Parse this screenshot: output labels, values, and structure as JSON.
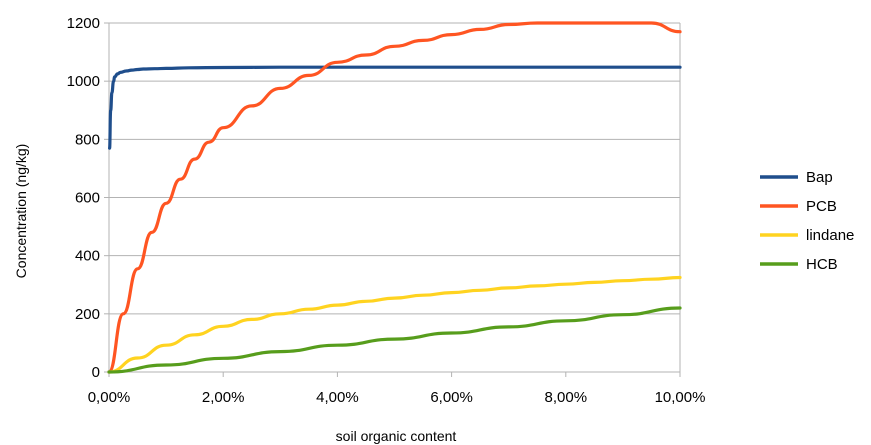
{
  "chart_data": {
    "type": "line",
    "title": "",
    "xlabel": "soil organic content",
    "ylabel": "Concentration (ng/kg)",
    "xlim": [
      0,
      0.1
    ],
    "ylim": [
      0,
      1200
    ],
    "x_tick_values": [
      0,
      0.02,
      0.04,
      0.06,
      0.08,
      0.1
    ],
    "x_tick_labels": [
      "0,00%",
      "2,00%",
      "4,00%",
      "6,00%",
      "8,00%",
      "10,00%"
    ],
    "y_tick_values": [
      0,
      200,
      400,
      600,
      800,
      1000,
      1200
    ],
    "y_tick_labels": [
      "0",
      "200",
      "400",
      "600",
      "800",
      "1000",
      "1200"
    ],
    "grid": "horizontal",
    "legend_position": "right",
    "series": [
      {
        "name": "Bap",
        "color": "#1f4e8c",
        "x": [
          0.0001,
          0.0003,
          0.0005,
          0.0008,
          0.001,
          0.0015,
          0.002,
          0.003,
          0.004,
          0.005,
          0.006,
          0.008,
          0.01,
          0.014,
          0.02,
          0.03,
          0.04,
          0.06,
          0.08,
          0.1
        ],
        "y": [
          770,
          900,
          960,
          1000,
          1015,
          1025,
          1030,
          1035,
          1038,
          1040,
          1042,
          1043,
          1044,
          1046,
          1047,
          1048,
          1048,
          1048,
          1048,
          1048
        ]
      },
      {
        "name": "PCB",
        "color": "#ff5522",
        "x": [
          0,
          0.0025,
          0.005,
          0.0075,
          0.01,
          0.0125,
          0.015,
          0.0175,
          0.02,
          0.025,
          0.03,
          0.035,
          0.04,
          0.045,
          0.05,
          0.055,
          0.06,
          0.065,
          0.07,
          0.075,
          0.08,
          0.085,
          0.09,
          0.095,
          0.1
        ],
        "y": [
          0,
          200,
          355,
          480,
          580,
          663,
          732,
          790,
          840,
          915,
          975,
          1020,
          1065,
          1090,
          1120,
          1140,
          1160,
          1178,
          1195,
          1210,
          1225,
          1238,
          1250,
          1262,
          1170
        ]
      },
      {
        "name": "lindane",
        "color": "#ffd320",
        "x": [
          0,
          0.005,
          0.01,
          0.015,
          0.02,
          0.025,
          0.03,
          0.035,
          0.04,
          0.045,
          0.05,
          0.055,
          0.06,
          0.065,
          0.07,
          0.075,
          0.08,
          0.085,
          0.09,
          0.095,
          0.1
        ],
        "y": [
          0,
          48,
          92,
          128,
          157,
          181,
          200,
          216,
          230,
          243,
          254,
          264,
          273,
          281,
          289,
          296,
          302,
          308,
          314,
          319,
          325
        ]
      },
      {
        "name": "HCB",
        "color": "#579d1c",
        "x": [
          0,
          0.01,
          0.02,
          0.03,
          0.04,
          0.05,
          0.06,
          0.07,
          0.08,
          0.09,
          0.1
        ],
        "y": [
          0,
          24,
          47,
          70,
          92,
          113,
          134,
          155,
          176,
          197,
          220
        ]
      }
    ]
  }
}
